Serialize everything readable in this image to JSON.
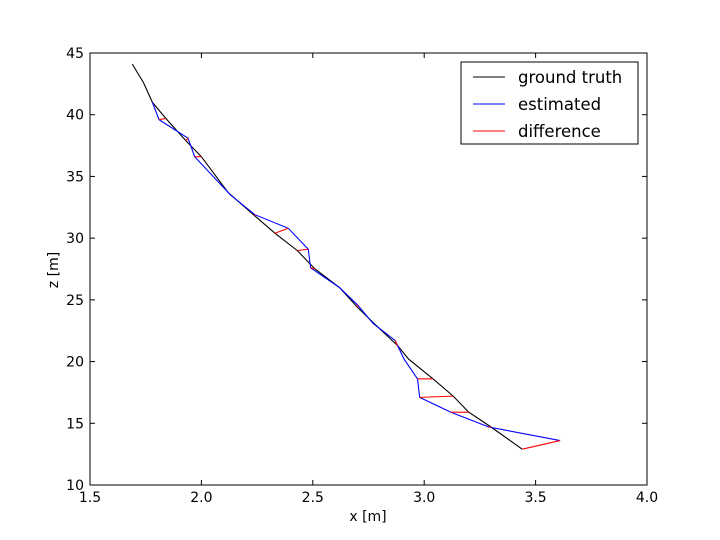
{
  "chart_data": {
    "type": "line",
    "title": "",
    "xlabel": "x [m]",
    "ylabel": "z [m]",
    "xlim": [
      1.5,
      4.0
    ],
    "ylim": [
      10,
      45
    ],
    "xticks": [
      1.5,
      2.0,
      2.5,
      3.0,
      3.5,
      4.0
    ],
    "xtick_labels": [
      "1.5",
      "2.0",
      "2.5",
      "3.0",
      "3.5",
      "4.0"
    ],
    "yticks": [
      10,
      15,
      20,
      25,
      30,
      35,
      40,
      45
    ],
    "ytick_labels": [
      "10",
      "15",
      "20",
      "25",
      "30",
      "35",
      "40",
      "45"
    ],
    "grid": false,
    "legend_position": "top-right",
    "series": [
      {
        "name": "ground truth",
        "color": "#000000",
        "points": [
          [
            1.69,
            44.1
          ],
          [
            1.74,
            42.6
          ],
          [
            1.78,
            41.0
          ],
          [
            1.84,
            39.7
          ],
          [
            1.93,
            37.9
          ],
          [
            2.0,
            36.6
          ],
          [
            2.12,
            33.7
          ],
          [
            2.24,
            31.8
          ],
          [
            2.33,
            30.4
          ],
          [
            2.43,
            29.0
          ],
          [
            2.51,
            27.5
          ],
          [
            2.62,
            26.0
          ],
          [
            2.7,
            24.4
          ],
          [
            2.78,
            23.0
          ],
          [
            2.88,
            21.3
          ],
          [
            2.93,
            20.2
          ],
          [
            3.04,
            18.6
          ],
          [
            3.13,
            17.2
          ],
          [
            3.2,
            15.9
          ],
          [
            3.3,
            14.7
          ],
          [
            3.44,
            12.9
          ]
        ]
      },
      {
        "name": "estimated",
        "color": "#0000ff",
        "points": [
          [
            1.78,
            41.0
          ],
          [
            1.81,
            39.6
          ],
          [
            1.94,
            38.1
          ],
          [
            1.97,
            36.6
          ],
          [
            2.13,
            33.5
          ],
          [
            2.24,
            31.9
          ],
          [
            2.39,
            30.8
          ],
          [
            2.48,
            29.1
          ],
          [
            2.49,
            27.6
          ],
          [
            2.62,
            26.0
          ],
          [
            2.7,
            24.6
          ],
          [
            2.77,
            23.1
          ],
          [
            2.87,
            21.7
          ],
          [
            2.91,
            20.2
          ],
          [
            2.97,
            18.6
          ],
          [
            2.98,
            17.1
          ],
          [
            3.12,
            15.9
          ],
          [
            3.29,
            14.7
          ],
          [
            3.61,
            13.6
          ]
        ]
      },
      {
        "name": "difference",
        "color": "#ff0000",
        "segments": [
          [
            [
              1.78,
              41.0
            ],
            [
              1.78,
              41.0
            ]
          ],
          [
            [
              1.84,
              39.7
            ],
            [
              1.81,
              39.6
            ]
          ],
          [
            [
              1.93,
              37.9
            ],
            [
              1.94,
              38.1
            ]
          ],
          [
            [
              2.0,
              36.6
            ],
            [
              1.97,
              36.6
            ]
          ],
          [
            [
              2.24,
              31.8
            ],
            [
              2.24,
              31.9
            ]
          ],
          [
            [
              2.33,
              30.4
            ],
            [
              2.39,
              30.8
            ]
          ],
          [
            [
              2.43,
              29.0
            ],
            [
              2.48,
              29.1
            ]
          ],
          [
            [
              2.51,
              27.5
            ],
            [
              2.49,
              27.6
            ]
          ],
          [
            [
              2.62,
              26.0
            ],
            [
              2.62,
              26.0
            ]
          ],
          [
            [
              2.7,
              24.4
            ],
            [
              2.7,
              24.6
            ]
          ],
          [
            [
              2.88,
              21.3
            ],
            [
              2.87,
              21.7
            ]
          ],
          [
            [
              3.04,
              18.6
            ],
            [
              2.97,
              18.6
            ]
          ],
          [
            [
              3.13,
              17.2
            ],
            [
              2.98,
              17.1
            ]
          ],
          [
            [
              3.2,
              15.9
            ],
            [
              3.12,
              15.9
            ]
          ],
          [
            [
              3.3,
              14.7
            ],
            [
              3.29,
              14.7
            ]
          ],
          [
            [
              3.44,
              12.9
            ],
            [
              3.61,
              13.6
            ]
          ]
        ]
      }
    ]
  }
}
